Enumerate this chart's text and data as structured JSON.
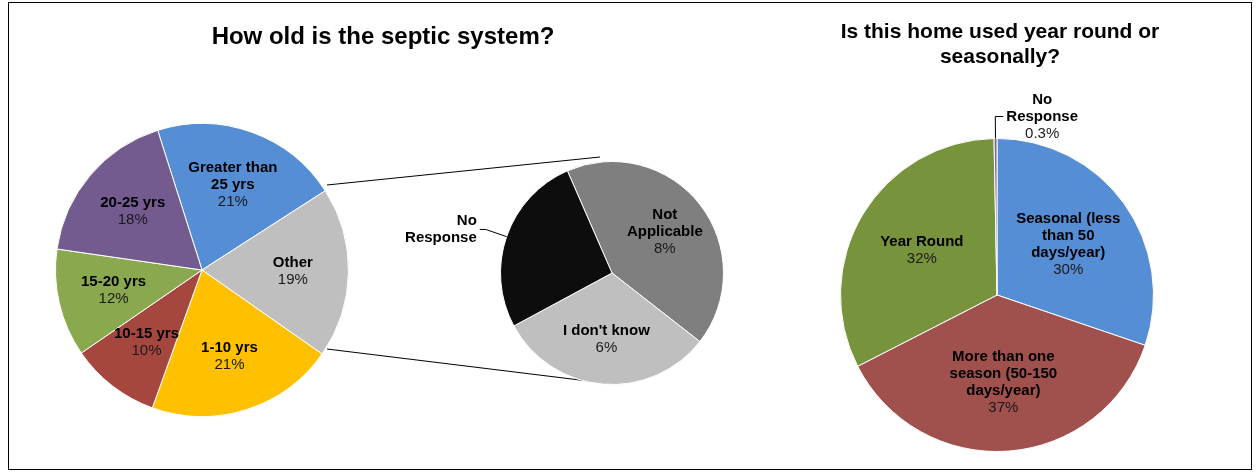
{
  "chart_data": [
    {
      "type": "pie",
      "title": "How old is the septic system?",
      "categories": [
        "Greater than 25 yrs",
        "Other",
        "1-10 yrs",
        "10-15 yrs",
        "15-20 yrs",
        "20-25 yrs"
      ],
      "values": [
        21,
        19,
        21,
        10,
        12,
        18
      ],
      "colors": [
        "#558ed5",
        "#bfbfbf",
        "#ffc000",
        "#a5473f",
        "#8aa84e",
        "#735a8f"
      ],
      "value_labels": [
        "21%",
        "19%",
        "21%",
        "10%",
        "12%",
        "18%"
      ]
    },
    {
      "type": "pie",
      "categories": [
        "Not Applicable",
        "I don't know",
        "No Response"
      ],
      "values": [
        8,
        6,
        5
      ],
      "colors": [
        "#7f7f7f",
        "#bfbfbf",
        "#0d0d0d"
      ],
      "value_labels": [
        "8%",
        "6%",
        null
      ]
    },
    {
      "type": "pie",
      "title": "Is this home used year round or seasonally?",
      "categories": [
        "Seasonal (less than 50 days/year)",
        "More than one season (50-150 days/year)",
        "Year Round",
        "No Response"
      ],
      "values": [
        30,
        37,
        32,
        0.3
      ],
      "colors": [
        "#558ed5",
        "#a0504d",
        "#77933c",
        "#8064a2"
      ],
      "value_labels": [
        "30%",
        "37%",
        "32%",
        "0.3%"
      ]
    }
  ]
}
